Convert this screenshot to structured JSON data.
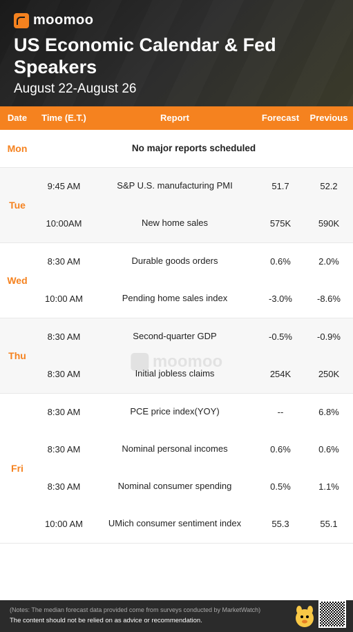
{
  "brand": {
    "name": "moomoo"
  },
  "header": {
    "title": "US Economic Calendar & Fed Speakers",
    "date_range": "August 22-August 26"
  },
  "colors": {
    "accent": "#f5821f",
    "header_bg": "#1a1a1a",
    "stripe": "#f7f7f7",
    "footer_bg": "#2b2b2b",
    "text": "#222222"
  },
  "table": {
    "columns": {
      "date": "Date",
      "time": "Time (E.T.)",
      "report": "Report",
      "forecast": "Forecast",
      "previous": "Previous"
    },
    "no_reports_text": "No major reports scheduled",
    "days": [
      {
        "label": "Mon",
        "stripe": false,
        "no_reports": true,
        "events": []
      },
      {
        "label": "Tue",
        "stripe": true,
        "events": [
          {
            "time": "9:45 AM",
            "report": "S&P U.S. manufacturing PMI",
            "forecast": "51.7",
            "previous": "52.2"
          },
          {
            "time": "10:00AM",
            "report": "New home sales",
            "forecast": "575K",
            "previous": "590K"
          }
        ]
      },
      {
        "label": "Wed",
        "stripe": false,
        "events": [
          {
            "time": "8:30 AM",
            "report": "Durable goods orders",
            "forecast": "0.6%",
            "previous": "2.0%"
          },
          {
            "time": "10:00 AM",
            "report": "Pending home sales index",
            "forecast": "-3.0%",
            "previous": "-8.6%"
          }
        ]
      },
      {
        "label": "Thu",
        "stripe": true,
        "events": [
          {
            "time": "8:30 AM",
            "report": "Second-quarter GDP",
            "forecast": "-0.5%",
            "previous": "-0.9%"
          },
          {
            "time": "8:30 AM",
            "report": "Initial jobless claims",
            "forecast": "254K",
            "previous": "250K"
          }
        ]
      },
      {
        "label": "Fri",
        "stripe": false,
        "events": [
          {
            "time": "8:30 AM",
            "report": "PCE price index(YOY)",
            "forecast": "--",
            "previous": "6.8%"
          },
          {
            "time": "8:30 AM",
            "report": "Nominal personal incomes",
            "forecast": "0.6%",
            "previous": "0.6%"
          },
          {
            "time": "8:30 AM",
            "report": "Nominal consumer spending",
            "forecast": "0.5%",
            "previous": "1.1%"
          },
          {
            "time": "10:00 AM",
            "report": "UMich consumer sentiment index",
            "forecast": "55.3",
            "previous": "55.1"
          }
        ]
      }
    ]
  },
  "footer": {
    "note1": "(Notes: The median forecast data provided come from surveys conducted by MarketWatch)",
    "note2": "The content should not be relied on as advice or recommendation."
  },
  "watermark": "moomoo"
}
